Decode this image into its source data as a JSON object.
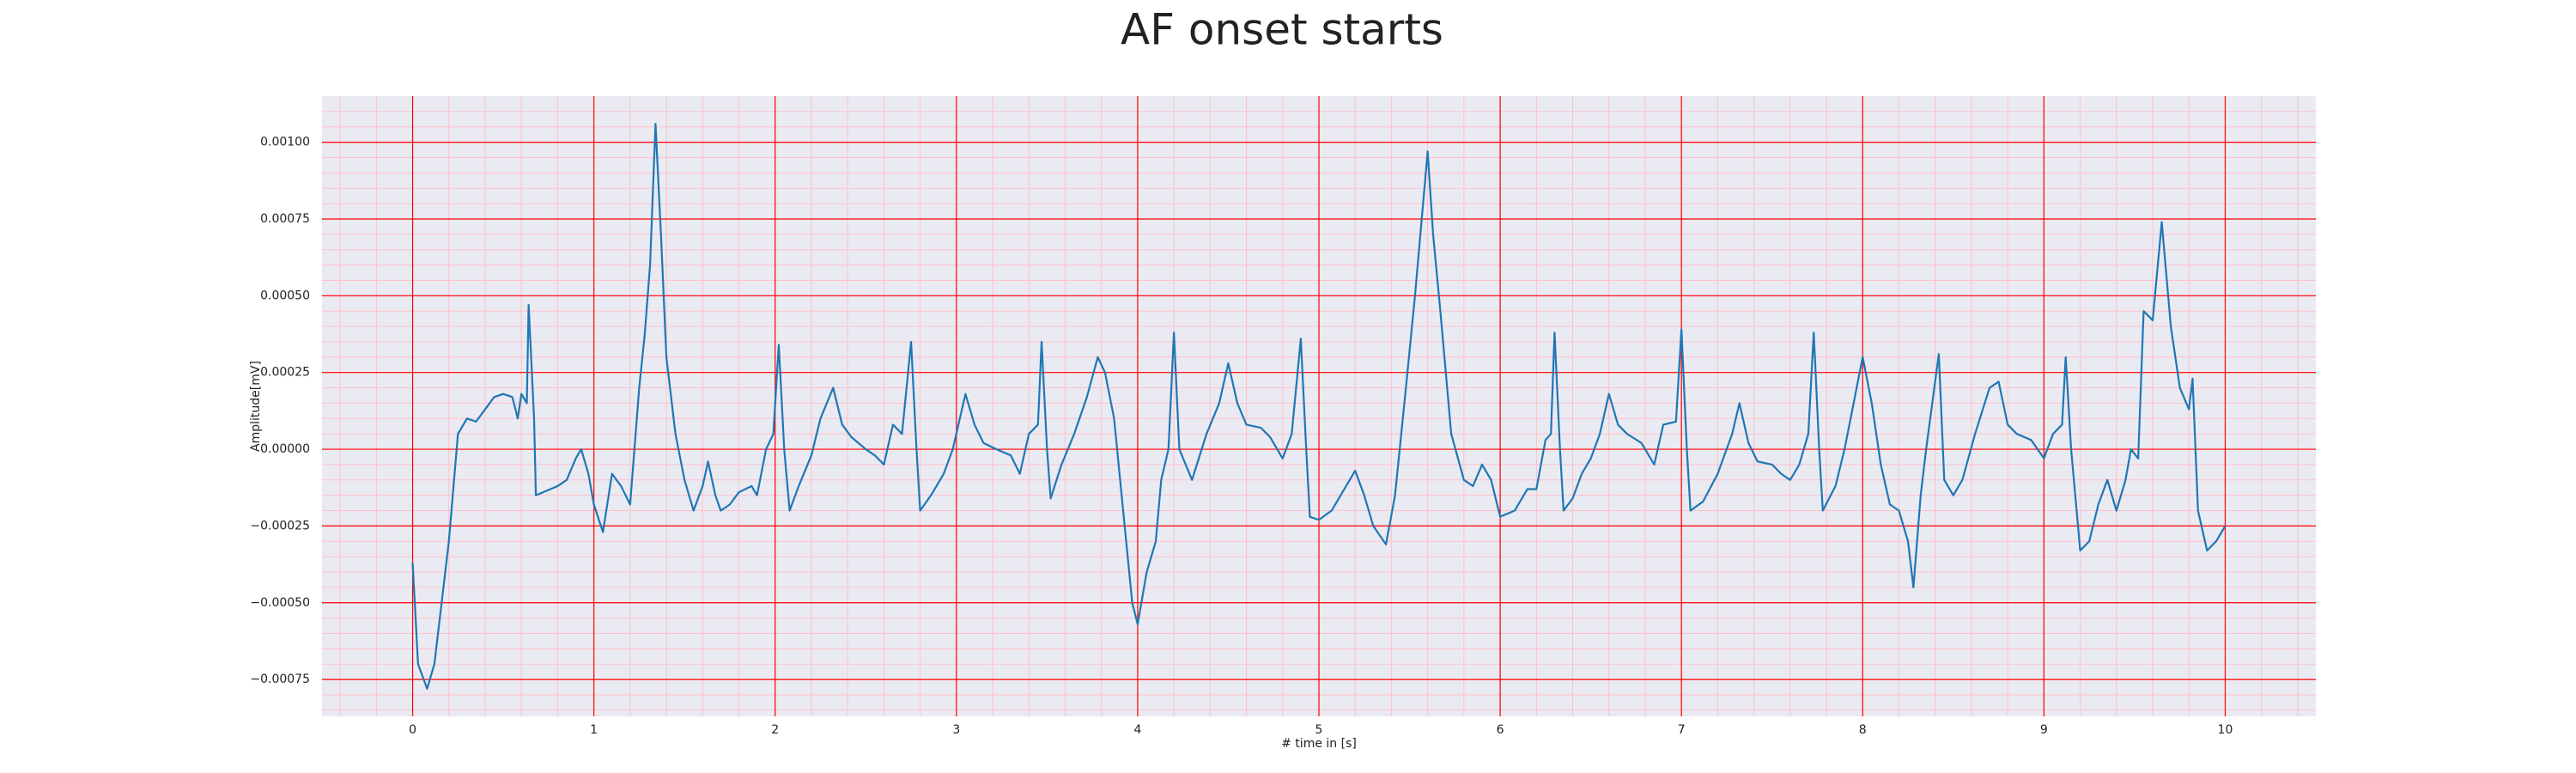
{
  "chart_data": {
    "type": "line",
    "title": "AF onset starts",
    "xlabel": "# time in [s]",
    "ylabel": "Amplitude[mV]",
    "x": [
      0,
      0.03,
      0.08,
      0.12,
      0.2,
      0.25,
      0.3,
      0.35,
      0.4,
      0.45,
      0.5,
      0.55,
      0.58,
      0.6,
      0.63,
      0.64,
      0.67,
      0.68,
      0.72,
      0.8,
      0.85,
      0.9,
      0.93,
      0.97,
      1.0,
      1.05,
      1.1,
      1.15,
      1.2,
      1.25,
      1.28,
      1.31,
      1.34,
      1.37,
      1.4,
      1.45,
      1.5,
      1.55,
      1.6,
      1.63,
      1.67,
      1.7,
      1.75,
      1.8,
      1.87,
      1.9,
      1.95,
      1.99,
      2.02,
      2.05,
      2.08,
      2.13,
      2.2,
      2.25,
      2.32,
      2.37,
      2.42,
      2.5,
      2.55,
      2.6,
      2.65,
      2.7,
      2.75,
      2.78,
      2.8,
      2.86,
      2.93,
      2.98,
      3.05,
      3.1,
      3.15,
      3.22,
      3.3,
      3.35,
      3.4,
      3.45,
      3.47,
      3.5,
      3.52,
      3.58,
      3.65,
      3.72,
      3.78,
      3.82,
      3.87,
      3.92,
      3.97,
      4.0,
      4.05,
      4.1,
      4.13,
      4.17,
      4.2,
      4.23,
      4.3,
      4.38,
      4.45,
      4.5,
      4.55,
      4.6,
      4.68,
      4.73,
      4.8,
      4.85,
      4.9,
      4.93,
      4.95,
      5.0,
      5.07,
      5.15,
      5.2,
      5.25,
      5.3,
      5.37,
      5.42,
      5.48,
      5.53,
      5.6,
      5.63,
      5.67,
      5.73,
      5.8,
      5.85,
      5.9,
      5.95,
      6.0,
      6.08,
      6.15,
      6.2,
      6.25,
      6.28,
      6.3,
      6.33,
      6.35,
      6.4,
      6.45,
      6.5,
      6.55,
      6.6,
      6.65,
      6.7,
      6.78,
      6.85,
      6.9,
      6.97,
      7.0,
      7.03,
      7.05,
      7.12,
      7.2,
      7.28,
      7.32,
      7.37,
      7.42,
      7.5,
      7.55,
      7.6,
      7.65,
      7.7,
      7.73,
      7.76,
      7.78,
      7.85,
      7.9,
      7.95,
      8.0,
      8.05,
      8.1,
      8.15,
      8.2,
      8.25,
      8.28,
      8.32,
      8.35,
      8.42,
      8.45,
      8.5,
      8.55,
      8.62,
      8.7,
      8.75,
      8.8,
      8.85,
      8.93,
      9.0,
      9.05,
      9.1,
      9.12,
      9.15,
      9.2,
      9.25,
      9.3,
      9.35,
      9.4,
      9.45,
      9.48,
      9.52,
      9.55,
      9.6,
      9.65,
      9.7,
      9.75,
      9.8,
      9.82,
      9.85,
      9.9,
      9.95,
      10.0
    ],
    "values": [
      -0.00037,
      -0.0007,
      -0.00078,
      -0.0007,
      -0.0003,
      5e-05,
      0.0001,
      9e-05,
      0.00013,
      0.00017,
      0.00018,
      0.00017,
      0.0001,
      0.00018,
      0.00015,
      0.00047,
      0.0001,
      -0.00015,
      -0.00014,
      -0.00012,
      -0.0001,
      -3e-05,
      0,
      -8e-05,
      -0.00018,
      -0.00027,
      -8e-05,
      -0.00012,
      -0.00018,
      0.0002,
      0.00037,
      0.0006,
      0.00106,
      0.0007,
      0.0003,
      5e-05,
      -0.0001,
      -0.0002,
      -0.00012,
      -4e-05,
      -0.00015,
      -0.0002,
      -0.00018,
      -0.00014,
      -0.00012,
      -0.00015,
      0,
      5e-05,
      0.00034,
      0,
      -0.0002,
      -0.00012,
      -2e-05,
      0.0001,
      0.0002,
      8e-05,
      4e-05,
      0,
      -2e-05,
      -5e-05,
      8e-05,
      5e-05,
      0.00035,
      0,
      -0.0002,
      -0.00015,
      -8e-05,
      0,
      0.00018,
      8e-05,
      2e-05,
      0,
      -2e-05,
      -8e-05,
      5e-05,
      8e-05,
      0.00035,
      0,
      -0.00016,
      -5e-05,
      5e-05,
      0.00017,
      0.0003,
      0.00025,
      0.0001,
      -0.0002,
      -0.0005,
      -0.00057,
      -0.0004,
      -0.0003,
      -0.0001,
      0,
      0.00038,
      0,
      -0.0001,
      5e-05,
      0.00015,
      0.00028,
      0.00015,
      8e-05,
      7e-05,
      4e-05,
      -3e-05,
      5e-05,
      0.00036,
      0,
      -0.00022,
      -0.00023,
      -0.0002,
      -0.00012,
      -7e-05,
      -0.00015,
      -0.00025,
      -0.00031,
      -0.00015,
      0.0002,
      0.0005,
      0.00097,
      0.0007,
      0.00045,
      5e-05,
      -0.0001,
      -0.00012,
      -5e-05,
      -0.0001,
      -0.00022,
      -0.0002,
      -0.00013,
      -0.00013,
      3e-05,
      5e-05,
      0.00038,
      0,
      -0.0002,
      -0.00016,
      -8e-05,
      -3e-05,
      5e-05,
      0.00018,
      8e-05,
      5e-05,
      2e-05,
      -5e-05,
      8e-05,
      9e-05,
      0.00039,
      0,
      -0.0002,
      -0.00017,
      -8e-05,
      5e-05,
      0.00015,
      2e-05,
      -4e-05,
      -5e-05,
      -8e-05,
      -0.0001,
      -5e-05,
      5e-05,
      0.00038,
      0,
      -0.0002,
      -0.00012,
      0,
      0.00015,
      0.0003,
      0.00015,
      -5e-05,
      -0.00018,
      -0.0002,
      -0.0003,
      -0.00045,
      -0.00015,
      0,
      0.00031,
      -0.0001,
      -0.00015,
      -0.0001,
      5e-05,
      0.0002,
      0.00022,
      8e-05,
      5e-05,
      3e-05,
      -3e-05,
      5e-05,
      8e-05,
      0.0003,
      0,
      -0.00033,
      -0.0003,
      -0.00018,
      -0.0001,
      -0.0002,
      -0.0001,
      0,
      -3e-05,
      0.00045,
      0.00042,
      0.00074,
      0.0004,
      0.0002,
      0.00013,
      0.00023,
      -0.0002,
      -0.00033,
      -0.0003,
      -0.00025
    ],
    "color": "#1f77b4",
    "xlim": [
      -0.5,
      10.5
    ],
    "xticks": [
      0,
      1,
      2,
      3,
      4,
      5,
      6,
      7,
      8,
      9,
      10
    ],
    "ylim": [
      -0.00087,
      0.00115
    ],
    "yticks": [
      {
        "value": -0.00075,
        "label": "−0.00075"
      },
      {
        "value": -0.0005,
        "label": "−0.00050"
      },
      {
        "value": -0.00025,
        "label": "−0.00025"
      },
      {
        "value": 0,
        "label": "0.00000"
      },
      {
        "value": 0.00025,
        "label": "0.00025"
      },
      {
        "value": 0.0005,
        "label": "0.00050"
      },
      {
        "value": 0.00075,
        "label": "0.00075"
      },
      {
        "value": 0.001,
        "label": "0.00100"
      }
    ],
    "grid": true,
    "grid_color": "#ff0000",
    "minor_grid": true,
    "minor_grid_color": "#ffc0cb",
    "background": "#eaeaf2"
  }
}
